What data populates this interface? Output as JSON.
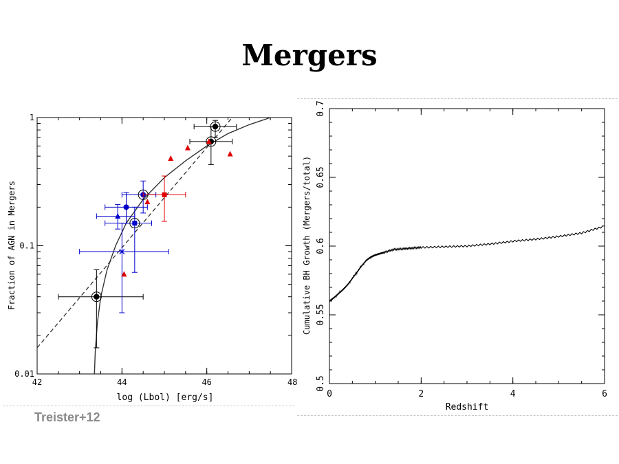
{
  "slide": {
    "title": "Mergers",
    "citation": "Treister+12"
  },
  "colors": {
    "red": "#e00000",
    "blue": "#0000cc",
    "black": "#000000",
    "curve": "#333333"
  },
  "chart_data": [
    {
      "type": "scatter",
      "title": "",
      "xlabel": "log (Lbol) [erg/s]",
      "ylabel": "Fraction of AGN in Mergers",
      "xlim": [
        42,
        48
      ],
      "ylim": [
        0.01,
        1
      ],
      "yscale": "log",
      "xticks": [
        "42",
        "44",
        "46",
        "48"
      ],
      "yticks": [
        "0.01",
        "0.1",
        "1"
      ],
      "series": [
        {
          "color": "#000000",
          "marker": "circle-circled",
          "points": [
            {
              "x": 43.4,
              "y": 0.04,
              "xerr": [
                0.9,
                1.1
              ],
              "yerr": [
                0.024,
                0.025
              ]
            },
            {
              "x": 46.1,
              "y": 0.65,
              "xerr": [
                0.5,
                0.5
              ],
              "yerr": [
                0.22,
                0.2
              ]
            },
            {
              "x": 46.2,
              "y": 0.85,
              "xerr": [
                0.5,
                0.5
              ],
              "yerr": [
                0.15,
                0.1
              ]
            }
          ]
        },
        {
          "color": "#0000cc",
          "marker": "circle",
          "points": [
            {
              "x": 44.1,
              "y": 0.2,
              "xerr": [
                0.5,
                0.5
              ],
              "yerr": [
                0.05,
                0.06
              ]
            },
            {
              "x": 44.5,
              "y": 0.25,
              "xerr": [
                0.5,
                0.3
              ],
              "yerr": [
                0.07,
                0.07
              ],
              "circled": true
            }
          ]
        },
        {
          "color": "#0000cc",
          "marker": "square",
          "points": [
            {
              "x": 44.3,
              "y": 0.15,
              "xerr": [
                0.7,
                0.4
              ],
              "yerr": [
                0.088,
                0.05
              ],
              "circled": true
            }
          ]
        },
        {
          "color": "#0000cc",
          "marker": "triangle",
          "points": [
            {
              "x": 43.9,
              "y": 0.17,
              "xerr": [
                0.5,
                0.4
              ],
              "yerr": [
                0.035,
                0.04
              ]
            }
          ]
        },
        {
          "color": "#0000cc",
          "marker": "cross",
          "points": [
            {
              "x": 44.0,
              "y": 0.09,
              "xerr": [
                1.0,
                1.1
              ],
              "yerr": [
                0.06,
                0.06
              ]
            }
          ]
        },
        {
          "color": "#e00000",
          "marker": "square",
          "points": [
            {
              "x": 45.0,
              "y": 0.25,
              "xerr": [
                0.5,
                0.5
              ],
              "yerr": [
                0.095,
                0.1
              ]
            }
          ]
        },
        {
          "color": "#e00000",
          "marker": "triangle",
          "points": [
            {
              "x": 44.05,
              "y": 0.06
            },
            {
              "x": 44.6,
              "y": 0.22
            },
            {
              "x": 45.15,
              "y": 0.48
            },
            {
              "x": 45.55,
              "y": 0.58
            },
            {
              "x": 46.05,
              "y": 0.65
            },
            {
              "x": 46.55,
              "y": 0.52
            }
          ]
        }
      ],
      "dashed_line": [
        [
          42,
          0.016
        ],
        [
          46.6,
          1.0
        ]
      ],
      "curve": [
        [
          43.35,
          0.01
        ],
        [
          43.37,
          0.015
        ],
        [
          43.42,
          0.025
        ],
        [
          43.5,
          0.04
        ],
        [
          43.65,
          0.065
        ],
        [
          43.85,
          0.1
        ],
        [
          44.1,
          0.15
        ],
        [
          44.5,
          0.23
        ],
        [
          45.0,
          0.34
        ],
        [
          45.5,
          0.46
        ],
        [
          46.0,
          0.6
        ],
        [
          46.5,
          0.75
        ],
        [
          47.0,
          0.88
        ],
        [
          47.5,
          1.0
        ]
      ],
      "legend": "none"
    },
    {
      "type": "line",
      "title": "",
      "xlabel": "Redshift",
      "ylabel": "Cumulative BH Growth (Mergers/total)",
      "xlim": [
        0,
        6
      ],
      "ylim": [
        0.5,
        0.7
      ],
      "xticks": [
        "0",
        "2",
        "4",
        "6"
      ],
      "yticks": [
        "0.5",
        "0.55",
        "0.6",
        "0.65",
        "0.7"
      ],
      "series": [
        {
          "color": "#000000",
          "x": [
            0,
            0.1,
            0.2,
            0.3,
            0.4,
            0.5,
            0.6,
            0.7,
            0.8,
            0.9,
            1.0,
            1.1,
            1.2,
            1.4,
            1.6,
            1.8,
            2.0,
            2.5,
            3.0,
            3.5,
            4.0,
            4.5,
            5.0,
            5.5,
            6.0
          ],
          "y": [
            0.56,
            0.5625,
            0.5655,
            0.5685,
            0.572,
            0.5765,
            0.581,
            0.5855,
            0.5895,
            0.592,
            0.5935,
            0.5945,
            0.5955,
            0.5975,
            0.598,
            0.5985,
            0.599,
            0.5995,
            0.6,
            0.6015,
            0.6035,
            0.605,
            0.607,
            0.6095,
            0.6145
          ]
        }
      ],
      "grid": false,
      "legend": "none"
    }
  ]
}
